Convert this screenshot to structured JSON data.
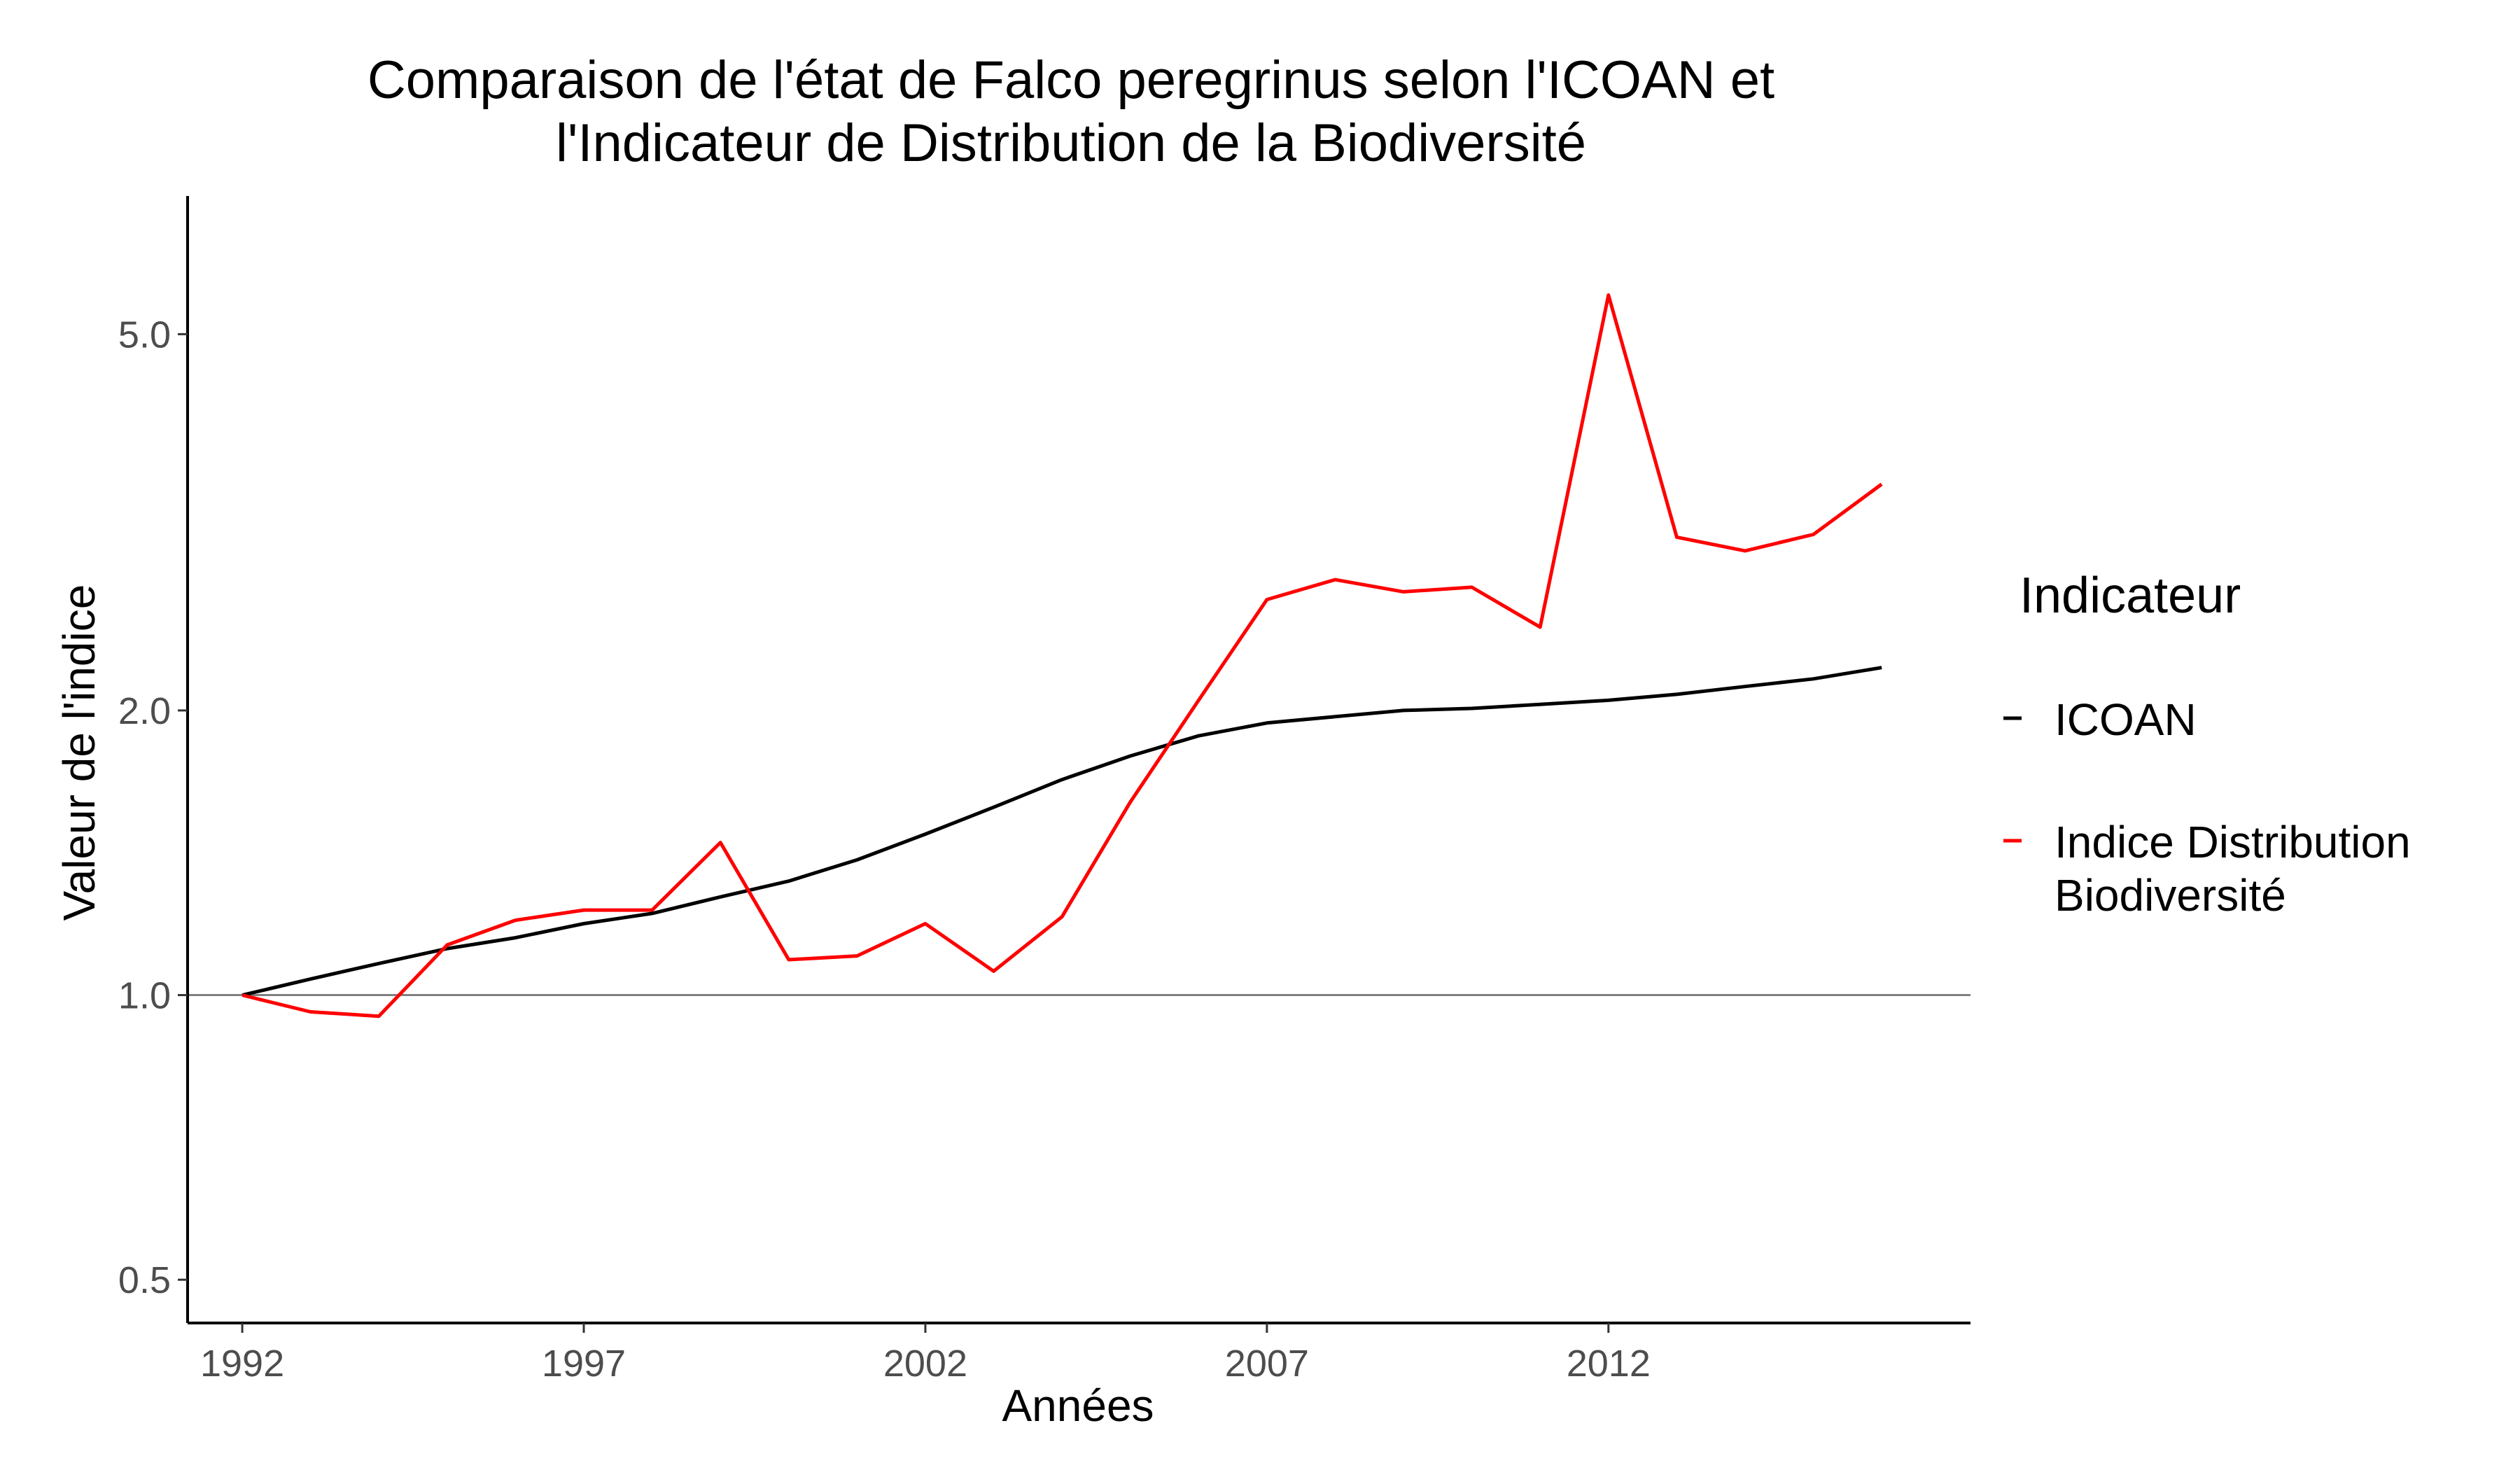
{
  "chart_data": {
    "type": "line",
    "title": "Comparaison de l'état de Falco peregrinus selon l'ICOAN et l'Indicateur de Distribution de la Biodiversité",
    "title_lines": [
      "Comparaison de l'état de Falco peregrinus selon l'ICOAN et",
      "l'Indicateur de Distribution de la Biodiversité"
    ],
    "xlabel": "Années",
    "ylabel": "Valeur de l'indice",
    "x_ticks": [
      1992,
      1997,
      2002,
      2007,
      2012
    ],
    "y_ticks": [
      0.5,
      1.0,
      2.0,
      5.0
    ],
    "y_tick_labels": [
      "0.5",
      "1.0",
      "2.0",
      "5.0"
    ],
    "y_scale": "log",
    "xlim": [
      1991.2,
      2017.3
    ],
    "ylim": [
      0.45,
      7.0
    ],
    "reference_line": 1.0,
    "grid": false,
    "legend": {
      "title": "Indicateur",
      "position": "right",
      "entries": [
        {
          "lines": [
            "ICOAN"
          ]
        },
        {
          "lines": [
            "Indice Distribution",
            "Biodiversité"
          ]
        }
      ]
    },
    "x": [
      1992,
      1993,
      1994,
      1995,
      1996,
      1997,
      1998,
      1999,
      2000,
      2001,
      2002,
      2003,
      2004,
      2005,
      2006,
      2007,
      2008,
      2009,
      2010,
      2011,
      2012,
      2013,
      2014,
      2015,
      2016
    ],
    "series": [
      {
        "name": "ICOAN",
        "color": "#000000",
        "values": [
          1.0,
          1.04,
          1.08,
          1.12,
          1.15,
          1.19,
          1.22,
          1.27,
          1.32,
          1.39,
          1.48,
          1.58,
          1.69,
          1.79,
          1.88,
          1.94,
          1.97,
          2.0,
          2.01,
          2.03,
          2.05,
          2.08,
          2.12,
          2.16,
          2.22
        ]
      },
      {
        "name": "Indice Distribution Biodiversité",
        "color": "#ff0000",
        "values": [
          1.0,
          0.96,
          0.95,
          1.13,
          1.2,
          1.23,
          1.23,
          1.45,
          1.09,
          1.1,
          1.19,
          1.06,
          1.21,
          1.6,
          2.05,
          2.62,
          2.75,
          2.67,
          2.7,
          2.45,
          5.5,
          3.05,
          2.95,
          3.07,
          3.47
        ]
      }
    ]
  }
}
